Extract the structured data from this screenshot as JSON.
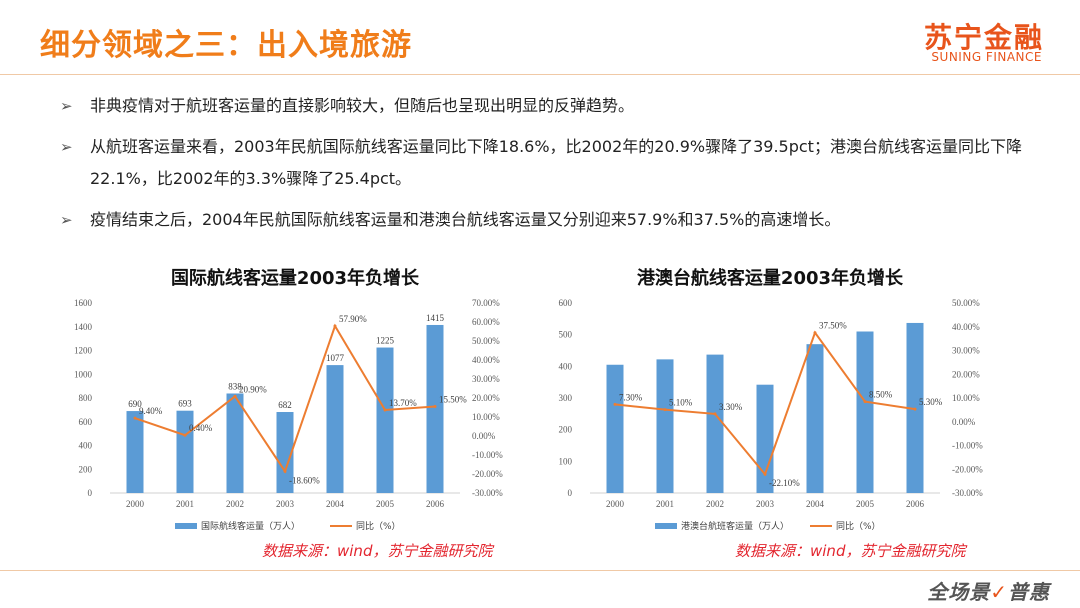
{
  "header": {
    "title": "细分领域之三：出入境旅游",
    "logo_cn": "苏宁金融",
    "logo_en": "SUNING FINANCE"
  },
  "bullets": [
    "非典疫情对于航班客运量的直接影响较大，但随后也呈现出明显的反弹趋势。",
    "从航班客运量来看，2003年民航国际航线客运量同比下降18.6%，比2002年的20.9%骤降了39.5pct；港澳台航线客运量同比下降 22.1%，比2002年的3.3%骤降了25.4pct。",
    "疫情结束之后，2004年民航国际航线客运量和港澳台航线客运量又分别迎来57.9%和37.5%的高速增长。"
  ],
  "bullet_marker": "➢",
  "chart_data": [
    {
      "type": "bar",
      "title": "国际航线客运量2003年负增长",
      "categories": [
        "2000",
        "2001",
        "2002",
        "2003",
        "2004",
        "2005",
        "2006"
      ],
      "series": [
        {
          "name": "国际航线客运量（万人）",
          "type": "bar",
          "axis": "left",
          "values": [
            690,
            693,
            838,
            682,
            1077,
            1225,
            1415
          ],
          "labels": [
            "690",
            "693",
            "838",
            "682",
            "1077",
            "1225",
            "1415"
          ]
        },
        {
          "name": "同比（%）",
          "type": "line",
          "axis": "right",
          "values": [
            9.4,
            0.4,
            20.9,
            -18.6,
            57.9,
            13.7,
            15.5
          ],
          "labels": [
            "9.40%",
            "0.40%",
            "20.90%",
            "-18.60%",
            "57.90%",
            "13.70%",
            "15.50%"
          ]
        }
      ],
      "y_left": {
        "min": 0,
        "max": 1600,
        "ticks": [
          "0",
          "200",
          "400",
          "600",
          "800",
          "1000",
          "1200",
          "1400",
          "1600"
        ]
      },
      "y_right": {
        "min": -30,
        "max": 70,
        "ticks": [
          "-30.00%",
          "-20.00%",
          "-10.00%",
          "0.00%",
          "10.00%",
          "20.00%",
          "30.00%",
          "40.00%",
          "50.00%",
          "60.00%",
          "70.00%"
        ]
      },
      "legend": "bottom",
      "grid": false
    },
    {
      "type": "bar",
      "title": "港澳台航线客运量2003年负增长",
      "categories": [
        "2000",
        "2001",
        "2002",
        "2003",
        "2004",
        "2005",
        "2006"
      ],
      "series": [
        {
          "name": "港澳台航班客运量（万人）",
          "type": "bar",
          "axis": "left",
          "values": [
            405,
            422,
            437,
            342,
            470,
            510,
            537
          ]
        },
        {
          "name": "同比（%）",
          "type": "line",
          "axis": "right",
          "values": [
            7.3,
            5.1,
            3.3,
            -22.1,
            37.5,
            8.5,
            5.3
          ],
          "labels": [
            "7.30%",
            "5.10%",
            "3.30%",
            "-22.10%",
            "37.50%",
            "8.50%",
            "5.30%"
          ]
        }
      ],
      "y_left": {
        "min": 0,
        "max": 600,
        "ticks": [
          "0",
          "100",
          "200",
          "300",
          "400",
          "500",
          "600"
        ]
      },
      "y_right": {
        "min": -30,
        "max": 50,
        "ticks": [
          "-30.00%",
          "-20.00%",
          "-10.00%",
          "0.00%",
          "10.00%",
          "20.00%",
          "30.00%",
          "40.00%",
          "50.00%"
        ]
      },
      "legend": "bottom",
      "grid": false
    }
  ],
  "sources": [
    "数据来源：wind，苏宁金融研究院",
    "数据来源：wind，苏宁金融研究院"
  ],
  "footer": {
    "slogan_main": "全场景",
    "slogan_check": "✓",
    "slogan_tail": "普惠"
  },
  "colors": {
    "bar": "#5b9bd5",
    "line": "#ed7d31",
    "title": "#f07d1a",
    "source": "#e3262f"
  }
}
